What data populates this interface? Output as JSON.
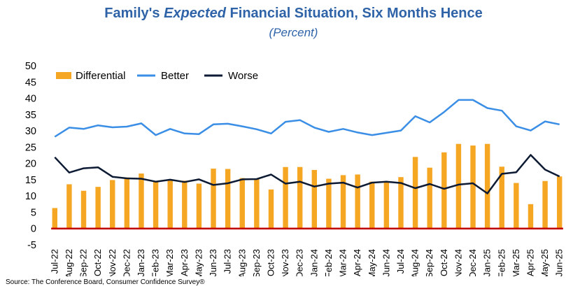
{
  "title_parts": {
    "pre": "Family's ",
    "em": "Expected",
    "post": " Financial Situation, Six Months Hence"
  },
  "source": "Source: The Conference Board, Consumer Confidence Survey®",
  "chart_data": {
    "type": "bar+line",
    "title": "Family's Expected Financial Situation, Six Months Hence",
    "subtitle": "(Percent)",
    "ylim": [
      -5,
      50
    ],
    "yticks": [
      -5,
      0,
      5,
      10,
      15,
      20,
      25,
      30,
      35,
      40,
      45,
      50
    ],
    "categories": [
      "Jul-22",
      "Aug-22",
      "Sep-22",
      "Oct-22",
      "Nov-22",
      "Dec-22",
      "Jan-23",
      "Feb-23",
      "Mar-23",
      "Apr-23",
      "May-23",
      "Jun-23",
      "Jul-23",
      "Aug-23",
      "Sep-23",
      "Oct-23",
      "Nov-23",
      "Dec-23",
      "Jan-24",
      "Feb-24",
      "Mar-24",
      "Apr-24",
      "May-24",
      "Jun-24",
      "Jul-24",
      "Aug-24",
      "Sep-24",
      "Oct-24",
      "Nov-24",
      "Dec-24",
      "Jan-25",
      "Feb-25",
      "Mar-25",
      "Apr-25",
      "May-25",
      "Jun-25"
    ],
    "series": [
      {
        "name": "Differential",
        "type": "bar",
        "color": "#f5a623",
        "values": [
          6.3,
          13.6,
          11.6,
          12.8,
          14.9,
          15.7,
          16.9,
          14.3,
          15.1,
          14.7,
          13.8,
          18.4,
          18.3,
          15.5,
          15.1,
          12.0,
          18.9,
          18.9,
          18.0,
          15.3,
          16.4,
          16.6,
          14.4,
          14.5,
          15.8,
          22.0,
          18.7,
          23.4,
          26.0,
          25.5,
          26.0,
          19.0,
          14.0,
          7.5,
          14.6,
          16.0
        ]
      },
      {
        "name": "Better",
        "type": "line",
        "color": "#3a8ee6",
        "values": [
          28.2,
          31.0,
          30.6,
          31.7,
          31.1,
          31.3,
          32.3,
          28.7,
          30.6,
          29.2,
          29.0,
          32.0,
          32.2,
          31.4,
          30.5,
          29.2,
          32.8,
          33.3,
          31.0,
          29.7,
          30.6,
          29.5,
          28.7,
          29.4,
          30.1,
          34.5,
          32.6,
          35.8,
          39.5,
          39.5,
          37.0,
          36.2,
          31.4,
          30.1,
          32.9,
          32.0
        ]
      },
      {
        "name": "Worse",
        "type": "line",
        "color": "#0d1a33",
        "values": [
          21.9,
          17.2,
          18.5,
          18.8,
          15.9,
          15.4,
          15.3,
          14.4,
          15.0,
          14.3,
          15.1,
          13.4,
          13.9,
          15.1,
          15.2,
          16.6,
          13.8,
          14.4,
          12.9,
          13.8,
          14.1,
          12.6,
          14.1,
          14.4,
          14.0,
          12.4,
          13.7,
          12.2,
          13.5,
          13.9,
          10.8,
          16.8,
          17.3,
          22.6,
          18.1,
          16.0
        ]
      }
    ],
    "zero_line": {
      "value": 0,
      "color": "#c00000"
    },
    "legend_position": "top-left"
  }
}
